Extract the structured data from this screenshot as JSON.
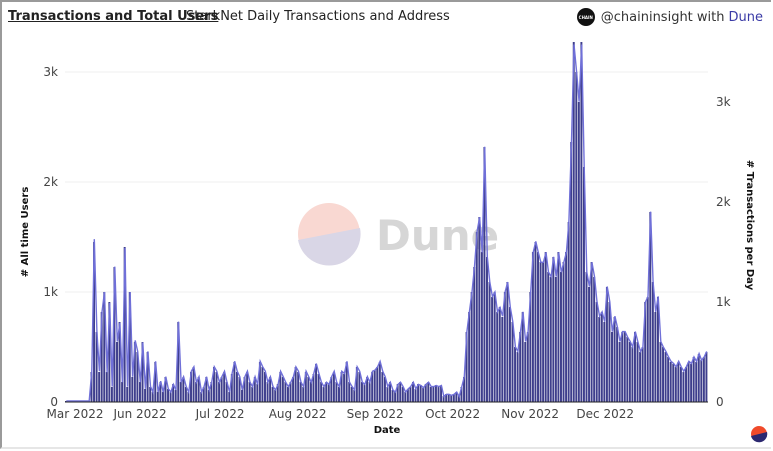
{
  "header": {
    "title": "Transactions and Total Users",
    "subtitle": "StarkNet Daily Transactions and Address",
    "brand_logo_text": "CHAIN",
    "brand_handle": "@chaininsight with",
    "brand_name": "Dune"
  },
  "watermark": "Dune",
  "colors": {
    "bar": "#3e3e8c",
    "line": "#7070d8",
    "grid": "#efefef",
    "brand": "#3b3ba6"
  },
  "chart_data": {
    "type": "bar",
    "title": "StarkNet Daily Transactions and Address",
    "xlabel": "Date",
    "ylabel_left": "# All time Users",
    "ylabel_right": "# Transactions per Day",
    "ylim_left": [
      0,
      3250
    ],
    "ylim_right": [
      0,
      3600
    ],
    "left_ticks": [
      "0",
      "1k",
      "2k",
      "3k"
    ],
    "left_tick_values": [
      0,
      1000,
      2000,
      3000
    ],
    "right_ticks": [
      "0",
      "1k",
      "2k",
      "3k"
    ],
    "right_tick_values": [
      0,
      1000,
      2000,
      3000
    ],
    "x_ticks": [
      "Mar 2022",
      "Jun 2022",
      "Jul 2022",
      "Aug 2022",
      "Sep 2022",
      "Oct 2022",
      "Nov 2022",
      "Dec 2022"
    ],
    "x_tick_day_index": [
      0,
      30,
      62,
      93,
      124,
      155,
      186,
      216
    ],
    "grid": true,
    "series": [
      {
        "name": "Transactions per Day",
        "axis": "right",
        "values": [
          10,
          10,
          10,
          10,
          10,
          10,
          10,
          10,
          10,
          10,
          300,
          1600,
          700,
          300,
          900,
          1100,
          300,
          1000,
          150,
          1350,
          600,
          800,
          200,
          1550,
          150,
          1100,
          250,
          600,
          500,
          200,
          600,
          130,
          500,
          150,
          100,
          400,
          100,
          200,
          100,
          250,
          130,
          100,
          180,
          120,
          800,
          200,
          250,
          150,
          100,
          300,
          350,
          200,
          250,
          100,
          150,
          250,
          120,
          200,
          350,
          300,
          200,
          250,
          300,
          200,
          100,
          280,
          400,
          300,
          250,
          120,
          250,
          300,
          200,
          150,
          250,
          180,
          400,
          350,
          300,
          200,
          250,
          150,
          120,
          180,
          300,
          250,
          200,
          150,
          200,
          250,
          350,
          300,
          200,
          150,
          300,
          250,
          200,
          280,
          380,
          280,
          200,
          150,
          200,
          180,
          250,
          300,
          200,
          150,
          300,
          280,
          400,
          200,
          150,
          120,
          350,
          300,
          200,
          180,
          250,
          200,
          300,
          320,
          350,
          400,
          300,
          250,
          150,
          200,
          120,
          100,
          180,
          200,
          150,
          100,
          130,
          150,
          200,
          130,
          180,
          170,
          140,
          180,
          200,
          150,
          150,
          170,
          150,
          160,
          60,
          80,
          80,
          70,
          80,
          100,
          60,
          150,
          250,
          700,
          900,
          1100,
          1350,
          1700,
          1850,
          1500,
          2550,
          1450,
          1200,
          1050,
          1100,
          900,
          950,
          850,
          1100,
          1200,
          950,
          800,
          550,
          500,
          700,
          900,
          600,
          700,
          1100,
          1500,
          1600,
          1500,
          1400,
          1400,
          1500,
          1300,
          1250,
          1450,
          1250,
          1500,
          1300,
          1400,
          1500,
          1800,
          2600,
          3600,
          3300,
          3000,
          3600,
          2350,
          1300,
          1150,
          1400,
          1250,
          1000,
          850,
          900,
          800,
          1150,
          1000,
          700,
          850,
          750,
          600,
          700,
          700,
          650,
          600,
          550,
          700,
          600,
          500,
          550,
          1000,
          1050,
          1900,
          1200,
          900,
          1050,
          600,
          550,
          500,
          450,
          400,
          380,
          350,
          400,
          350,
          300,
          350,
          400,
          380,
          450,
          400,
          480,
          420,
          450,
          500
        ]
      },
      {
        "name": "All time Users",
        "axis": "left",
        "values": [
          10,
          10,
          10,
          10,
          10,
          10,
          10,
          10,
          10,
          10,
          280,
          1480,
          640,
          280,
          820,
          1000,
          270,
          900,
          140,
          1230,
          550,
          720,
          180,
          1400,
          140,
          1000,
          230,
          560,
          460,
          180,
          540,
          120,
          460,
          140,
          90,
          370,
          90,
          190,
          90,
          230,
          120,
          90,
          160,
          110,
          730,
          180,
          230,
          140,
          90,
          280,
          320,
          180,
          230,
          90,
          140,
          230,
          110,
          180,
          320,
          280,
          180,
          230,
          280,
          180,
          90,
          260,
          370,
          280,
          230,
          110,
          230,
          280,
          180,
          140,
          230,
          160,
          370,
          320,
          280,
          180,
          230,
          140,
          110,
          160,
          280,
          230,
          180,
          140,
          180,
          230,
          320,
          280,
          180,
          140,
          280,
          230,
          180,
          260,
          350,
          260,
          180,
          140,
          180,
          160,
          230,
          280,
          180,
          140,
          280,
          260,
          370,
          180,
          140,
          110,
          320,
          280,
          180,
          160,
          230,
          180,
          280,
          290,
          320,
          370,
          280,
          230,
          140,
          180,
          110,
          90,
          160,
          180,
          140,
          90,
          120,
          140,
          180,
          120,
          160,
          150,
          130,
          160,
          180,
          140,
          140,
          150,
          140,
          150,
          50,
          70,
          70,
          60,
          70,
          90,
          50,
          140,
          230,
          640,
          820,
          1000,
          1230,
          1550,
          1680,
          1360,
          2320,
          1320,
          1090,
          960,
          1000,
          820,
          860,
          780,
          1000,
          1090,
          860,
          730,
          500,
          460,
          640,
          820,
          550,
          640,
          1000,
          1360,
          1460,
          1360,
          1270,
          1270,
          1360,
          1180,
          1140,
          1320,
          1140,
          1360,
          1180,
          1270,
          1360,
          1640,
          2370,
          3250,
          3000,
          2730,
          3250,
          2140,
          1180,
          1050,
          1270,
          1140,
          910,
          780,
          820,
          730,
          1050,
          910,
          640,
          780,
          680,
          550,
          640,
          640,
          590,
          550,
          500,
          640,
          550,
          460,
          500,
          910,
          960,
          1730,
          1090,
          820,
          960,
          550,
          500,
          460,
          410,
          370,
          350,
          320,
          370,
          320,
          280,
          320,
          370,
          350,
          410,
          370,
          440,
          380,
          410,
          460
        ]
      }
    ]
  }
}
